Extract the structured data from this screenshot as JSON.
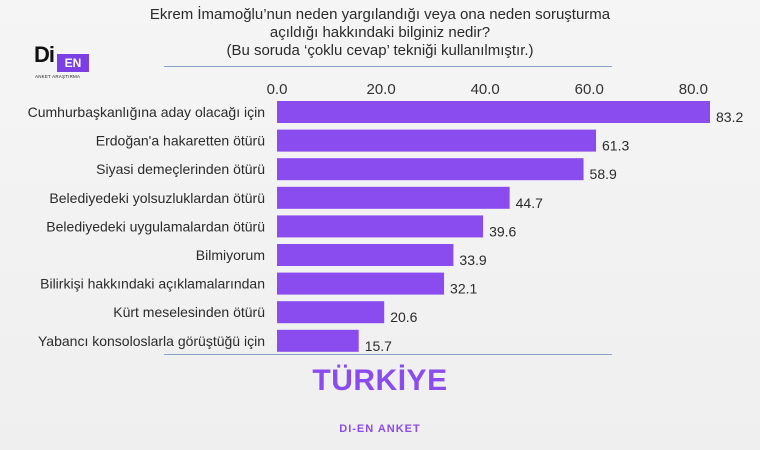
{
  "header": {
    "title": "Ekrem İmamoğlu’nun neden yargılandığı veya ona neden soruşturma\naçıldığı hakkındaki bilginiz nedir?\n(Bu soruda ‘çoklu cevap’ tekniği kullanılmıştır.)"
  },
  "logo": {
    "mark_left": "Di",
    "mark_right": "EN",
    "tagline": "ANKET ARAŞTIRMA"
  },
  "chart_data": {
    "type": "bar",
    "orientation": "horizontal",
    "categories": [
      "Cumhurbaşkanlığına aday olacağı için",
      "Erdoğan'a hakaretten ötürü",
      "Siyasi demeçlerinden ötürü",
      "Belediyedeki yolsuzluklardan ötürü",
      "Belediyedeki uygulamalardan ötürü",
      "Bilmiyorum",
      "Bilirkişi hakkındaki açıklamalarından",
      "Kürt meselesinden ötürü",
      "Yabancı konsoloslarla görüştüğü için"
    ],
    "values": [
      83.2,
      61.3,
      58.9,
      44.7,
      39.6,
      33.9,
      32.1,
      20.6,
      15.7
    ],
    "value_labels": [
      "83.2",
      "61.3",
      "58.9",
      "44.7",
      "39.6",
      "33.9",
      "32.1",
      "20.6",
      "15.7"
    ],
    "xlim": [
      0,
      83.2
    ],
    "ticks": [
      0,
      20,
      40,
      60,
      80
    ],
    "tick_labels": [
      "0.0",
      "20.0",
      "40.0",
      "60.0",
      "80.0"
    ],
    "axis_position": "top",
    "grid": false,
    "bar_color": "#8a4bef"
  },
  "region_label": "TÜRKİYE",
  "footer": "DI-EN ANKET"
}
